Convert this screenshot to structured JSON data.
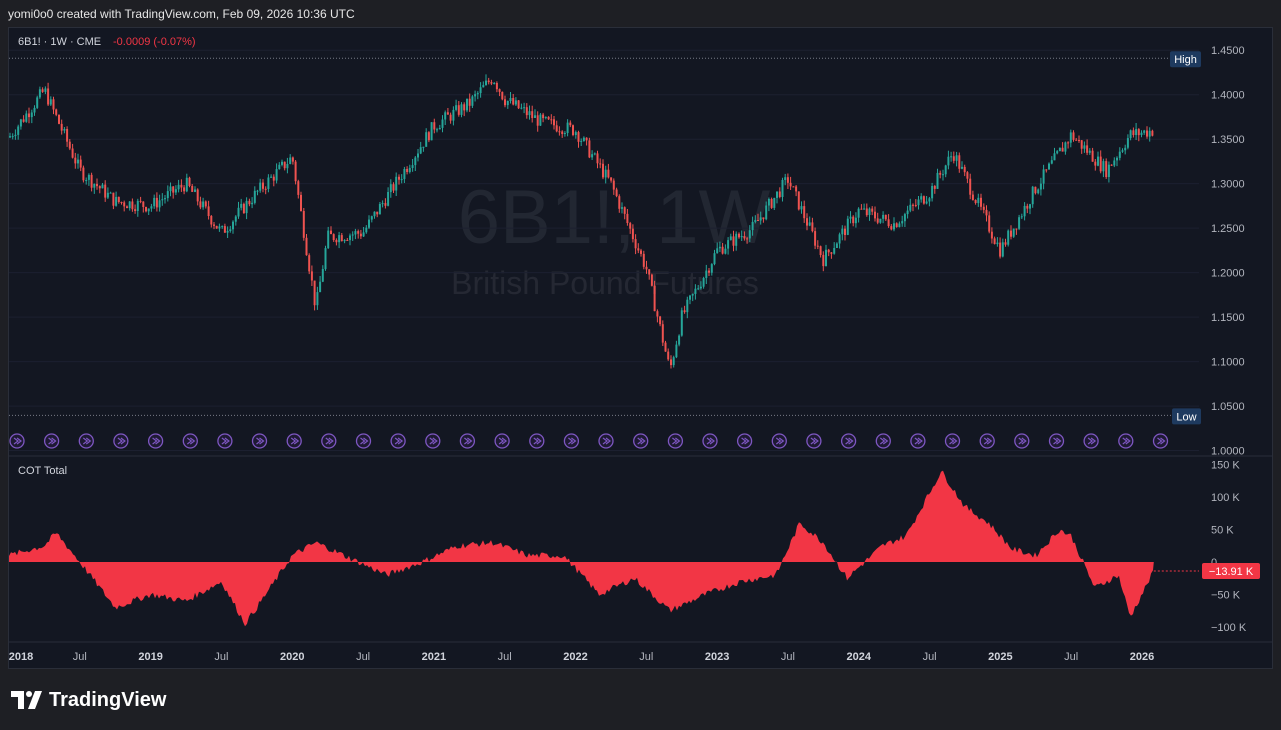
{
  "credit": "yomi0o0 created with TradingView.com, Feb 09, 2026 10:36 UTC",
  "brand": "TradingView",
  "colors": {
    "up": "#26a69a",
    "down": "#ef5350",
    "cot": "#f23645",
    "background": "#131722",
    "marker": "#7e57c2"
  },
  "chart_data": [
    {
      "type": "candlestick",
      "symbol_header": "6B1! · 1W · CME",
      "change": "-0.0009 (-0.07%)",
      "watermark_symbol": "6B1!, 1W",
      "watermark_name": "British Pound Futures",
      "high_label": "High",
      "low_label": "Low",
      "high_value": 1.441,
      "low_value": 1.0395,
      "ylim": [
        0.995,
        1.475
      ],
      "yticks": [
        "1.4500",
        "1.4000",
        "1.3500",
        "1.3000",
        "1.2500",
        "1.2000",
        "1.1500",
        "1.1000",
        "1.0500",
        "1.0000"
      ],
      "x": [
        "2018-01",
        "2018-04",
        "2018-07",
        "2018-10",
        "2019-01",
        "2019-04",
        "2019-07",
        "2019-10",
        "2020-01",
        "2020-03",
        "2020-04",
        "2020-07",
        "2020-10",
        "2021-01",
        "2021-04",
        "2021-06",
        "2021-07",
        "2021-10",
        "2022-01",
        "2022-04",
        "2022-07",
        "2022-09",
        "2022-10",
        "2023-01",
        "2023-04",
        "2023-07",
        "2023-10",
        "2024-01",
        "2024-04",
        "2024-07",
        "2024-09",
        "2025-01",
        "2025-04",
        "2025-07",
        "2025-10",
        "2025-12",
        "2026-02"
      ],
      "close": [
        1.352,
        1.405,
        1.315,
        1.28,
        1.275,
        1.3,
        1.245,
        1.29,
        1.33,
        1.16,
        1.24,
        1.245,
        1.305,
        1.365,
        1.39,
        1.42,
        1.395,
        1.37,
        1.36,
        1.3,
        1.205,
        1.09,
        1.15,
        1.225,
        1.25,
        1.305,
        1.215,
        1.27,
        1.255,
        1.29,
        1.335,
        1.225,
        1.295,
        1.355,
        1.315,
        1.355,
        1.36
      ],
      "xtick_labels": [
        "2018",
        "Jul",
        "2019",
        "Jul",
        "2020",
        "Jul",
        "2021",
        "Jul",
        "2022",
        "Jul",
        "2023",
        "Jul",
        "2024",
        "Jul",
        "2025",
        "Jul",
        "2026"
      ]
    },
    {
      "type": "area",
      "title": "COT Total",
      "current_value": -13.91,
      "current_label": "−13.91 K",
      "unit": "K contracts",
      "ylim": [
        -120,
        160
      ],
      "yticks": [
        "150 K",
        "100 K",
        "50 K",
        "0",
        "−50 K",
        "−100 K"
      ],
      "x": [
        "2018-01",
        "2018-04",
        "2018-05",
        "2018-07",
        "2018-10",
        "2019-01",
        "2019-04",
        "2019-07",
        "2019-09",
        "2019-10",
        "2020-01",
        "2020-03",
        "2020-06",
        "2020-09",
        "2020-12",
        "2021-03",
        "2021-06",
        "2021-09",
        "2021-12",
        "2022-03",
        "2022-06",
        "2022-09",
        "2022-12",
        "2023-03",
        "2023-06",
        "2023-08",
        "2023-10",
        "2023-12",
        "2024-03",
        "2024-05",
        "2024-08",
        "2024-10",
        "2024-12",
        "2025-02",
        "2025-04",
        "2025-06",
        "2025-07",
        "2025-09",
        "2025-11",
        "2025-12",
        "2026-02"
      ],
      "values": [
        10,
        25,
        45,
        0,
        -70,
        -50,
        -60,
        -30,
        -95,
        -70,
        10,
        30,
        5,
        -20,
        0,
        25,
        30,
        10,
        10,
        -50,
        -25,
        -75,
        -50,
        -30,
        -20,
        60,
        30,
        -25,
        25,
        40,
        140,
        85,
        60,
        20,
        10,
        50,
        40,
        -40,
        -20,
        -85,
        -14
      ]
    }
  ]
}
